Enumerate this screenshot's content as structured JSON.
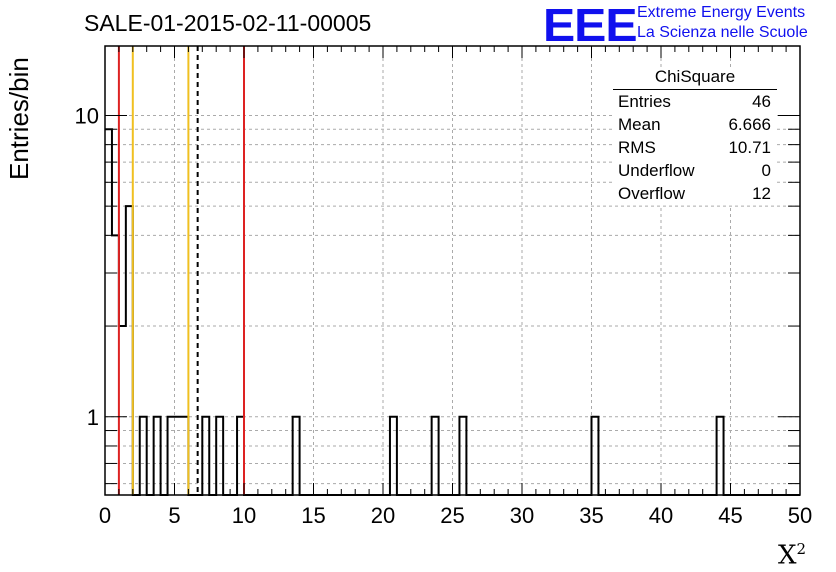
{
  "header": {
    "title": "SALE-01-2015-02-11-00005",
    "logo_text": "EEE",
    "logo_line1": "Extreme Energy Events",
    "logo_line2": "La Scienza nelle Scuole",
    "logo_color": "#1010ee"
  },
  "stats_box": {
    "title": "ChiSquare",
    "rows": [
      {
        "label": "Entries",
        "value": "46"
      },
      {
        "label": "Mean",
        "value": "6.666"
      },
      {
        "label": "RMS",
        "value": "10.71"
      },
      {
        "label": "Underflow",
        "value": "0"
      },
      {
        "label": "Overflow",
        "value": "12"
      }
    ]
  },
  "chart_data": {
    "type": "bar",
    "title": "SALE-01-2015-02-11-00005",
    "xlabel": "X",
    "xlabel_superscript": "2",
    "ylabel": "Entries/bin",
    "xlim": [
      0,
      50
    ],
    "ylim": [
      0.55,
      17
    ],
    "y_scale": "log",
    "bin_width": 0.5,
    "x_ticks": [
      "0",
      "5",
      "10",
      "15",
      "20",
      "25",
      "30",
      "35",
      "40",
      "45",
      "50"
    ],
    "y_ticks": [
      "1",
      "10"
    ],
    "grid": true,
    "bins": [
      {
        "x": 0.0,
        "count": 9
      },
      {
        "x": 0.5,
        "count": 4
      },
      {
        "x": 1.0,
        "count": 2
      },
      {
        "x": 1.5,
        "count": 5
      },
      {
        "x": 2.5,
        "count": 1
      },
      {
        "x": 3.5,
        "count": 1
      },
      {
        "x": 4.5,
        "count": 1
      },
      {
        "x": 5.0,
        "count": 1
      },
      {
        "x": 5.5,
        "count": 1
      },
      {
        "x": 7.0,
        "count": 1
      },
      {
        "x": 8.0,
        "count": 1
      },
      {
        "x": 9.5,
        "count": 1
      },
      {
        "x": 13.5,
        "count": 1
      },
      {
        "x": 20.5,
        "count": 1
      },
      {
        "x": 23.5,
        "count": 1
      },
      {
        "x": 25.5,
        "count": 1
      },
      {
        "x": 35.0,
        "count": 1
      },
      {
        "x": 44.0,
        "count": 1
      }
    ],
    "reference_lines": [
      {
        "x": 1.0,
        "color": "#dd2222",
        "style": "solid"
      },
      {
        "x": 2.0,
        "color": "#f0c020",
        "style": "solid"
      },
      {
        "x": 6.0,
        "color": "#f0c020",
        "style": "solid"
      },
      {
        "x": 6.666,
        "color": "#000000",
        "style": "dashed"
      },
      {
        "x": 10.0,
        "color": "#dd2222",
        "style": "solid"
      }
    ]
  }
}
